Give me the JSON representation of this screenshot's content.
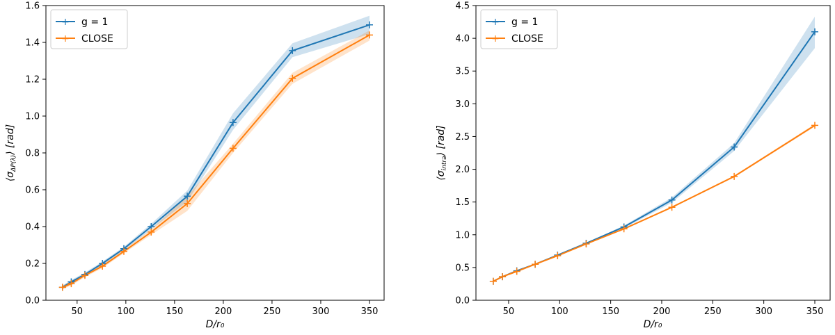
{
  "chart_data": [
    {
      "type": "line",
      "xlabel": "D/r₀",
      "ylabel": "⟨σΔP(λ)⟩ [rad]",
      "ylabel_parts": [
        "⟨σ",
        "ΔP(λ)",
        "⟩ [rad]"
      ],
      "xlim": [
        18,
        365
      ],
      "ylim": [
        0,
        1.6
      ],
      "xticks": [
        50,
        100,
        150,
        200,
        250,
        300,
        350
      ],
      "yticks": [
        0.0,
        0.2,
        0.4,
        0.6,
        0.8,
        1.0,
        1.2,
        1.4,
        1.6
      ],
      "ytick_labels": [
        "0.0",
        "0.2",
        "0.4",
        "0.6",
        "0.8",
        "1.0",
        "1.2",
        "1.4",
        "1.6"
      ],
      "legend": "top-left",
      "series": [
        {
          "name": "g = 1",
          "color": "#1f77b4",
          "x": [
            35,
            44,
            58,
            76,
            98,
            126,
            163,
            210,
            271,
            350
          ],
          "values": [
            0.07,
            0.1,
            0.14,
            0.2,
            0.28,
            0.4,
            0.565,
            0.965,
            1.355,
            1.495
          ],
          "band_low": [
            0.06,
            0.09,
            0.13,
            0.19,
            0.27,
            0.385,
            0.535,
            0.925,
            1.32,
            1.445
          ],
          "band_high": [
            0.08,
            0.11,
            0.15,
            0.21,
            0.29,
            0.415,
            0.595,
            1.015,
            1.395,
            1.545
          ]
        },
        {
          "name": "CLOSE",
          "color": "#ff7f0e",
          "x": [
            35,
            44,
            58,
            76,
            98,
            126,
            163,
            210,
            271,
            350
          ],
          "values": [
            0.07,
            0.09,
            0.135,
            0.185,
            0.265,
            0.37,
            0.525,
            0.825,
            1.205,
            1.44
          ],
          "band_low": [
            0.06,
            0.08,
            0.125,
            0.175,
            0.255,
            0.355,
            0.485,
            0.8,
            1.175,
            1.41
          ],
          "band_high": [
            0.08,
            0.1,
            0.145,
            0.195,
            0.275,
            0.385,
            0.565,
            0.85,
            1.235,
            1.465
          ]
        }
      ]
    },
    {
      "type": "line",
      "xlabel": "D/r₀",
      "ylabel": "⟨σintra⟩ [rad]",
      "ylabel_parts": [
        "⟨σ",
        "intra",
        "⟩ [rad]"
      ],
      "xlim": [
        18,
        365
      ],
      "ylim": [
        0,
        4.5
      ],
      "xticks": [
        50,
        100,
        150,
        200,
        250,
        300,
        350
      ],
      "yticks": [
        0.0,
        0.5,
        1.0,
        1.5,
        2.0,
        2.5,
        3.0,
        3.5,
        4.0,
        4.5
      ],
      "ytick_labels": [
        "0.0",
        "0.5",
        "1.0",
        "1.5",
        "2.0",
        "2.5",
        "3.0",
        "3.5",
        "4.0",
        "4.5"
      ],
      "legend": "top-left",
      "series": [
        {
          "name": "g = 1",
          "color": "#1f77b4",
          "x": [
            35,
            44,
            58,
            76,
            98,
            126,
            163,
            210,
            271,
            350
          ],
          "values": [
            0.29,
            0.36,
            0.45,
            0.55,
            0.69,
            0.87,
            1.12,
            1.53,
            2.34,
            4.1
          ],
          "band_low": [
            0.285,
            0.355,
            0.445,
            0.545,
            0.685,
            0.865,
            1.1,
            1.49,
            2.28,
            3.85
          ],
          "band_high": [
            0.295,
            0.365,
            0.455,
            0.555,
            0.695,
            0.875,
            1.14,
            1.57,
            2.4,
            4.33
          ]
        },
        {
          "name": "CLOSE",
          "color": "#ff7f0e",
          "x": [
            35,
            44,
            58,
            76,
            98,
            126,
            163,
            210,
            271,
            350
          ],
          "values": [
            0.29,
            0.36,
            0.44,
            0.55,
            0.68,
            0.86,
            1.09,
            1.42,
            1.89,
            2.67
          ],
          "band_low": [
            0.285,
            0.355,
            0.435,
            0.545,
            0.675,
            0.855,
            1.085,
            1.41,
            1.875,
            2.65
          ],
          "band_high": [
            0.295,
            0.365,
            0.445,
            0.555,
            0.685,
            0.865,
            1.095,
            1.43,
            1.905,
            2.69
          ]
        }
      ]
    }
  ]
}
